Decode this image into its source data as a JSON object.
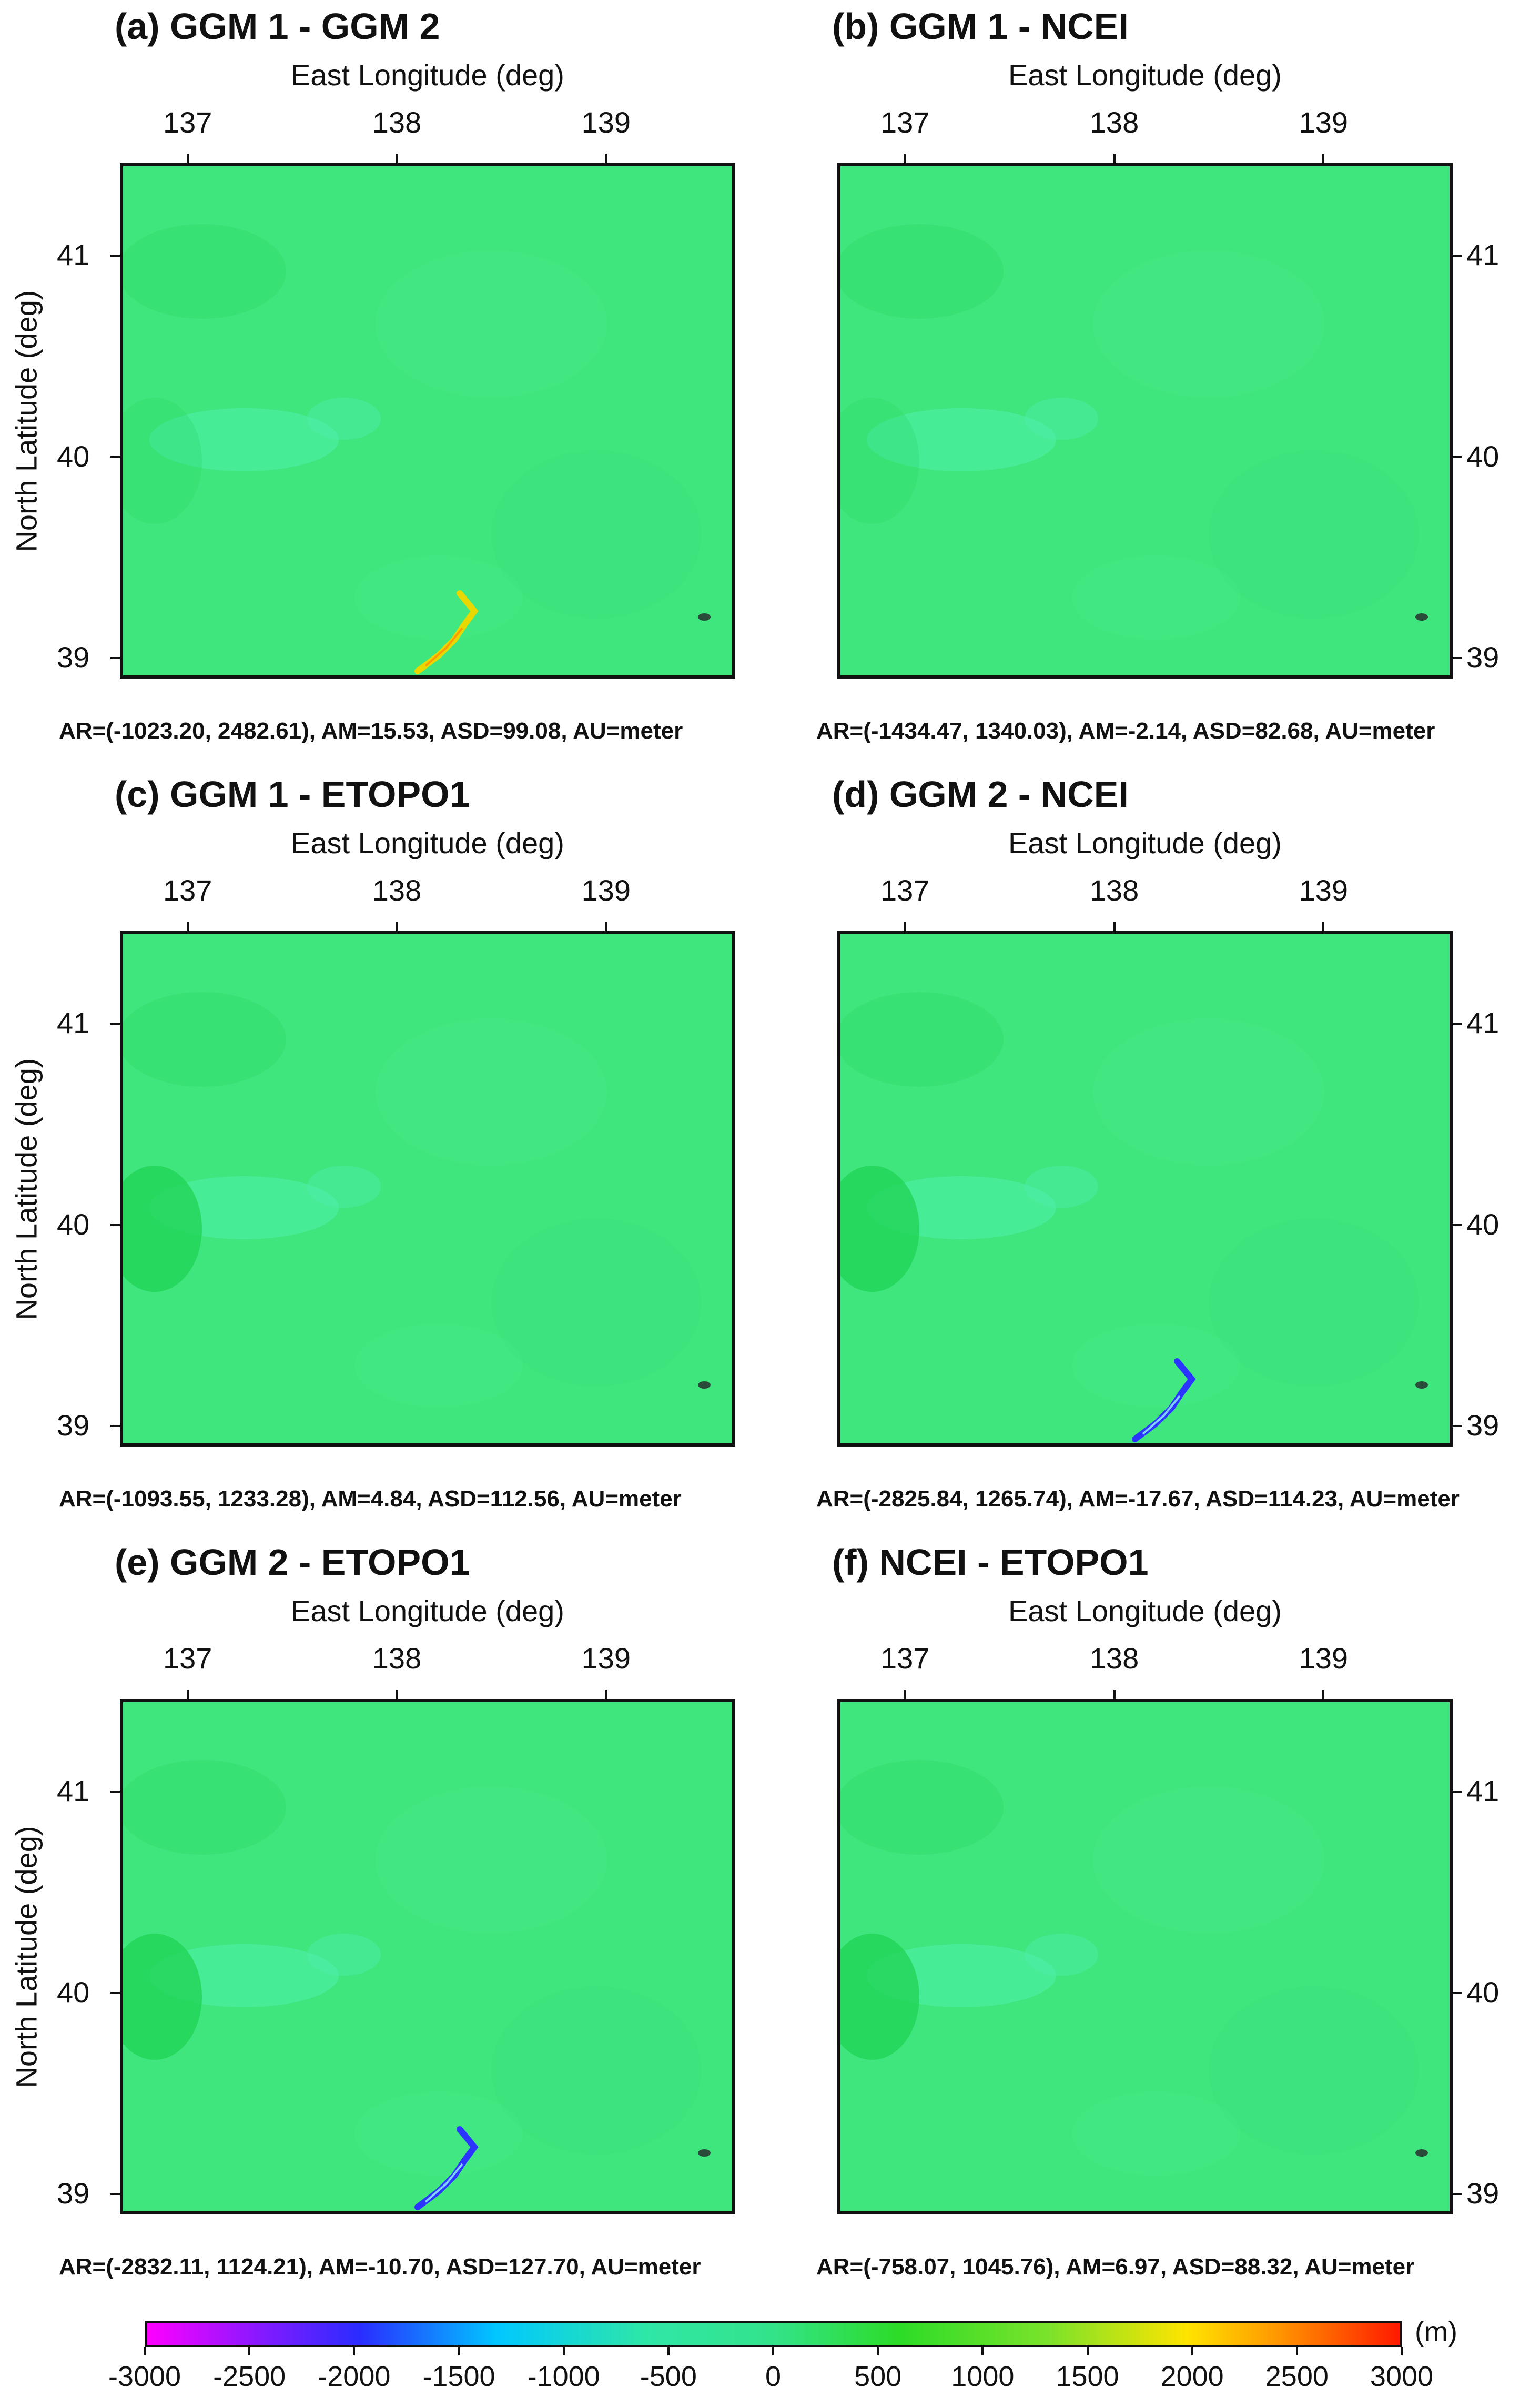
{
  "panels": [
    {
      "title": "(a) GGM 1 - GGM 2",
      "xlabel": "East Longitude (deg)",
      "ylabel": "North Latitude (deg)",
      "xticks": [
        "137",
        "138",
        "139"
      ],
      "yticks": [
        "41",
        "40",
        "39"
      ],
      "stats": "AR=(-1023.20, 2482.61), AM=15.53, ASD=99.08, AU=meter",
      "anomaly": "yellow"
    },
    {
      "title": "(b) GGM 1 - NCEI",
      "xlabel": "East Longitude (deg)",
      "ylabel": "",
      "xticks": [
        "137",
        "138",
        "139"
      ],
      "yticks": [
        "41",
        "40",
        "39"
      ],
      "stats": "AR=(-1434.47, 1340.03), AM=-2.14, ASD=82.68, AU=meter",
      "anomaly": "none"
    },
    {
      "title": "(c) GGM 1 - ETOPO1",
      "xlabel": "East Longitude (deg)",
      "ylabel": "North Latitude (deg)",
      "xticks": [
        "137",
        "138",
        "139"
      ],
      "yticks": [
        "41",
        "40",
        "39"
      ],
      "stats": "AR=(-1093.55, 1233.28), AM=4.84, ASD=112.56, AU=meter",
      "anomaly": "none"
    },
    {
      "title": "(d) GGM 2 - NCEI",
      "xlabel": "East Longitude (deg)",
      "ylabel": "",
      "xticks": [
        "137",
        "138",
        "139"
      ],
      "yticks": [
        "41",
        "40",
        "39"
      ],
      "stats": "AR=(-2825.84, 1265.74), AM=-17.67, ASD=114.23, AU=meter",
      "anomaly": "blue"
    },
    {
      "title": "(e) GGM 2 - ETOPO1",
      "xlabel": "East Longitude (deg)",
      "ylabel": "North Latitude (deg)",
      "xticks": [
        "137",
        "138",
        "139"
      ],
      "yticks": [
        "41",
        "40",
        "39"
      ],
      "stats": "AR=(-2832.11, 1124.21), AM=-10.70, ASD=127.70, AU=meter",
      "anomaly": "blue"
    },
    {
      "title": "(f) NCEI - ETOPO1",
      "xlabel": "East Longitude (deg)",
      "ylabel": "",
      "xticks": [
        "137",
        "138",
        "139"
      ],
      "yticks": [
        "41",
        "40",
        "39"
      ],
      "stats": "AR=(-758.07, 1045.76), AM=6.97, ASD=88.32, AU=meter",
      "anomaly": "none"
    }
  ],
  "colorbar": {
    "unit": "(m)",
    "ticks": [
      "-3000",
      "-2500",
      "-2000",
      "-1500",
      "-1000",
      "-500",
      "0",
      "500",
      "1000",
      "1500",
      "2000",
      "2500",
      "3000"
    ],
    "colors": [
      "#ff00ff",
      "#2a2cff",
      "#00c8ff",
      "#33e38a",
      "#2cdc28",
      "#ffe400",
      "#ff1a00"
    ]
  }
}
